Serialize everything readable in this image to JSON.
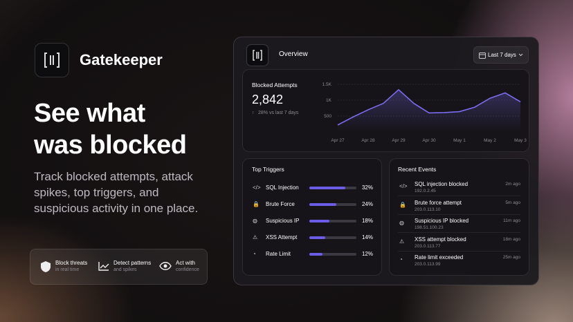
{
  "brand": {
    "name": "Gatekeeper"
  },
  "hero": {
    "headline": [
      "See what",
      "was blocked"
    ],
    "description": "Track blocked attempts, attack spikes, top triggers, and suspicious activity in one place."
  },
  "features": [
    {
      "title": "Block threats",
      "subtitle": "in real time"
    },
    {
      "title": "Detect patterns",
      "subtitle": "and spikes"
    },
    {
      "title": "Act with",
      "subtitle": "confidence"
    }
  ],
  "panel": {
    "title": "Overview",
    "date_range": "Last 7 days"
  },
  "chart_data": {
    "type": "line",
    "title": "Blocked Attempts",
    "total": "2,842",
    "change": "28% vs last 7 days",
    "categories": [
      "Apr 27",
      null,
      "Apr 28",
      null,
      "Apr 29",
      null,
      "Apr 30",
      null,
      "May 1",
      null,
      "May 2",
      null,
      "May 3"
    ],
    "values": [
      220,
      470,
      700,
      900,
      1330,
      900,
      600,
      610,
      640,
      780,
      1060,
      1230,
      950
    ],
    "color": "#7b6cf0",
    "ylim": [
      0,
      1500
    ],
    "yticks": [
      500,
      {
        "value": 1000,
        "label": "1K"
      },
      {
        "value": 1500,
        "label": "1.5K"
      }
    ],
    "grid": true
  },
  "top_triggers": {
    "title": "Top Triggers",
    "categories": [
      "SQL Injection",
      "Brute Force",
      "Suspicious IP",
      "XSS Attempt",
      "Rate Limit"
    ],
    "values": [
      32,
      24,
      18,
      14,
      12
    ],
    "value_labels": [
      "32%",
      "24%",
      "18%",
      "14%",
      "12%"
    ],
    "xlim": [
      0,
      42
    ],
    "color": "#6d5ce8"
  },
  "recent_events": {
    "title": "Recent Events",
    "items": [
      {
        "title": "SQL injection blocked",
        "ip": "192.0.2.45",
        "time": "2m ago"
      },
      {
        "title": "Brute force attempt",
        "ip": "203.0.113.10",
        "time": "5m ago"
      },
      {
        "title": "Suspicious IP blocked",
        "ip": "198.51.100.23",
        "time": "11m ago"
      },
      {
        "title": "XSS attempt blocked",
        "ip": "203.0.113.77",
        "time": "18m ago"
      },
      {
        "title": "Rate limit exceeded",
        "ip": "203.0.113.99",
        "time": "25m ago"
      }
    ]
  }
}
